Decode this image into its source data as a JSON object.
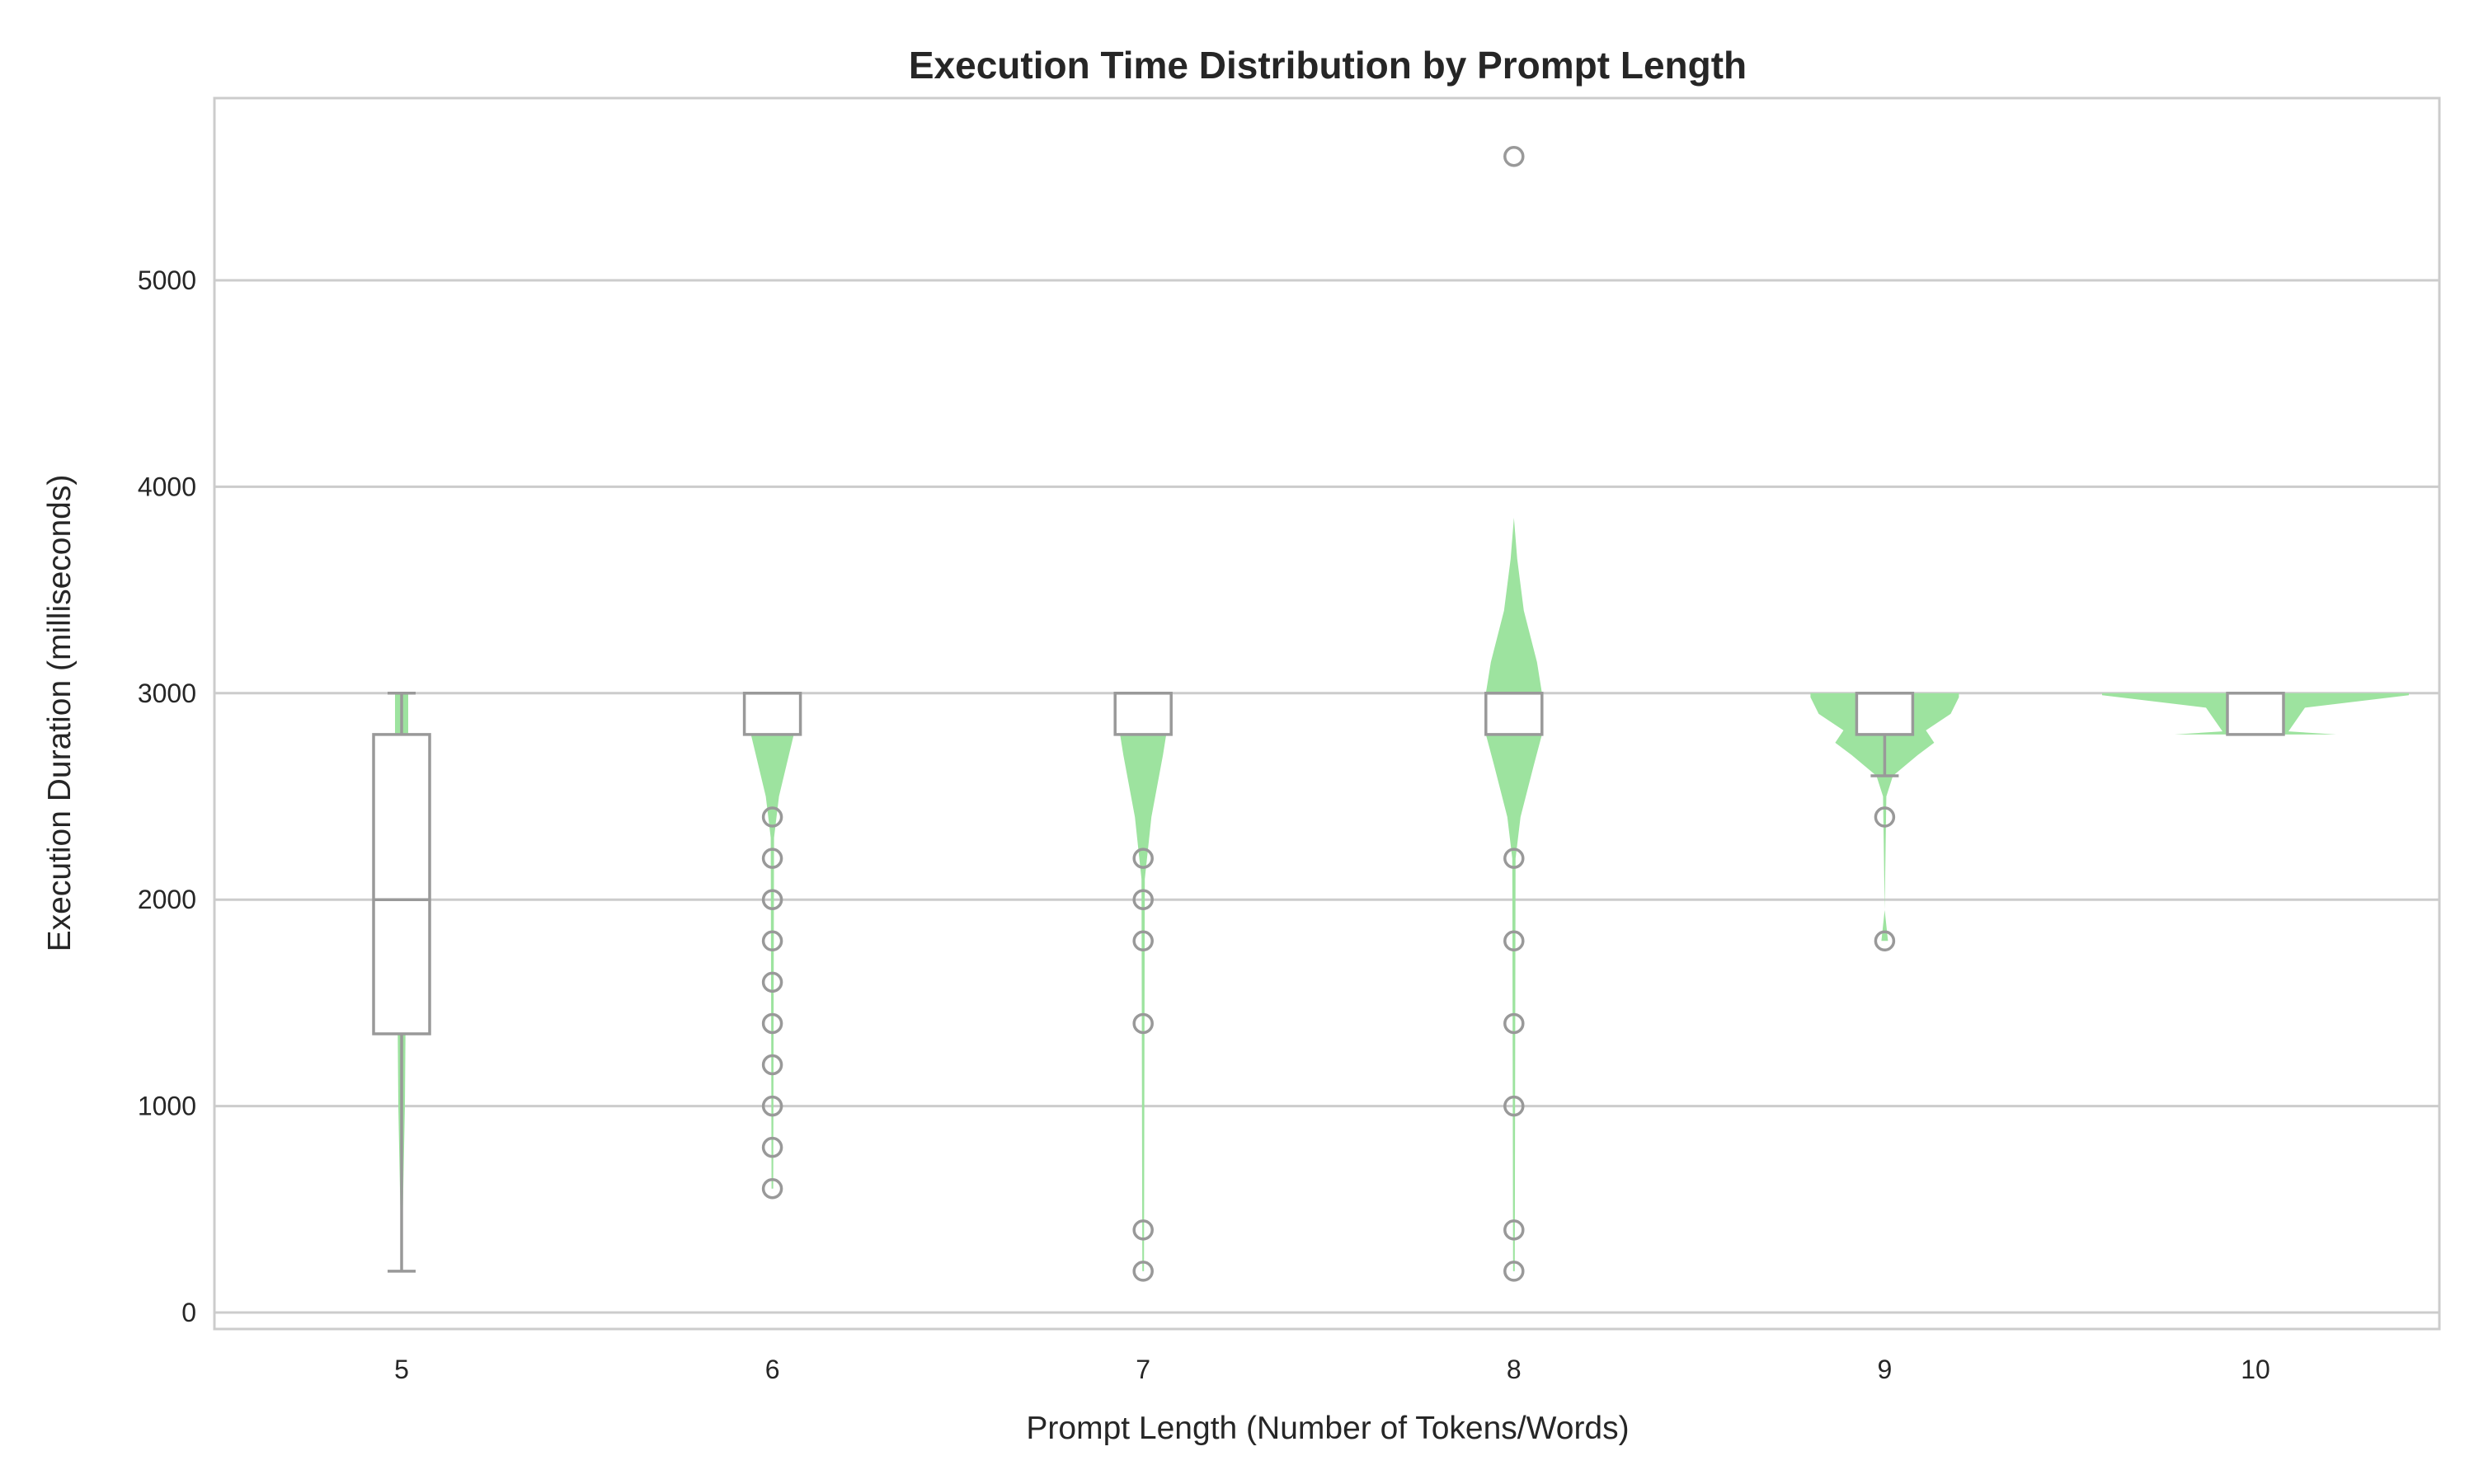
{
  "chart_data": {
    "type": "violin+box",
    "title": "Execution Time Distribution by Prompt Length",
    "xlabel": "Prompt Length (Number of Tokens/Words)",
    "ylabel": "Execution Duration (milliseconds)",
    "categories": [
      "5",
      "6",
      "7",
      "8",
      "9",
      "10"
    ],
    "yticks": [
      0,
      1000,
      2000,
      3000,
      4000,
      5000
    ],
    "ytick_labels": [
      "0",
      "1000",
      "2000",
      "3000",
      "4000",
      "5000"
    ],
    "ylim": [
      -100,
      5880
    ],
    "grid": true,
    "colors": {
      "violin": "#9de39f",
      "box": "#999999",
      "grid": "#cccccc"
    },
    "boxes": [
      {
        "category": "5",
        "whisker_low": 200,
        "q1": 1350,
        "median": 2000,
        "q3": 2800,
        "whisker_high": 3000,
        "outliers": []
      },
      {
        "category": "6",
        "whisker_low": 2800,
        "q1": 2800,
        "median": 3000,
        "q3": 3000,
        "whisker_high": 3000,
        "outliers": [
          2400,
          2200,
          2000,
          1800,
          1600,
          1400,
          1200,
          1000,
          800,
          600
        ]
      },
      {
        "category": "7",
        "whisker_low": 2800,
        "q1": 2800,
        "median": 3000,
        "q3": 3000,
        "whisker_high": 3000,
        "outliers": [
          2200,
          2000,
          1800,
          1400,
          400,
          200
        ]
      },
      {
        "category": "8",
        "whisker_low": 2800,
        "q1": 2800,
        "median": 3000,
        "q3": 3000,
        "whisker_high": 3000,
        "outliers": [
          5600,
          2200,
          1800,
          1400,
          1000,
          400,
          200
        ]
      },
      {
        "category": "9",
        "whisker_low": 2600,
        "q1": 2800,
        "median": 3000,
        "q3": 3000,
        "whisker_high": 3000,
        "outliers": [
          2400,
          1800
        ]
      },
      {
        "category": "10",
        "whisker_low": 2800,
        "q1": 2800,
        "median": 3000,
        "q3": 3000,
        "whisker_high": 3000,
        "outliers": []
      }
    ],
    "violin_density": [
      [
        [
          200,
          0
        ],
        [
          1000,
          0.02
        ],
        [
          2000,
          0.03
        ],
        [
          2800,
          0.04
        ],
        [
          3000,
          0.04
        ]
      ],
      [
        [
          600,
          0.005
        ],
        [
          2300,
          0.01
        ],
        [
          2500,
          0.04
        ],
        [
          2700,
          0.1
        ],
        [
          2800,
          0.13
        ],
        [
          3000,
          0.13
        ]
      ],
      [
        [
          200,
          0.005
        ],
        [
          2100,
          0.01
        ],
        [
          2400,
          0.05
        ],
        [
          2700,
          0.12
        ],
        [
          2800,
          0.14
        ],
        [
          3000,
          0.14
        ]
      ],
      [
        [
          200,
          0.005
        ],
        [
          2200,
          0.01
        ],
        [
          2400,
          0.04
        ],
        [
          2650,
          0.12
        ],
        [
          2800,
          0.17
        ],
        [
          3000,
          0.17
        ],
        [
          3150,
          0.14
        ],
        [
          3400,
          0.06
        ],
        [
          3650,
          0.02
        ],
        [
          3850,
          0
        ]
      ],
      [
        [
          1800,
          0.02
        ],
        [
          1950,
          0
        ],
        [
          2500,
          0.01
        ],
        [
          2600,
          0.05
        ],
        [
          2700,
          0.2
        ],
        [
          2760,
          0.3
        ],
        [
          2820,
          0.25
        ],
        [
          2900,
          0.4
        ],
        [
          2980,
          0.45
        ],
        [
          3000,
          0.45
        ]
      ],
      [
        [
          2800,
          0.49
        ],
        [
          2815,
          0.2
        ],
        [
          2930,
          0.3
        ],
        [
          2990,
          0.93
        ],
        [
          3000,
          0.93
        ]
      ]
    ]
  }
}
